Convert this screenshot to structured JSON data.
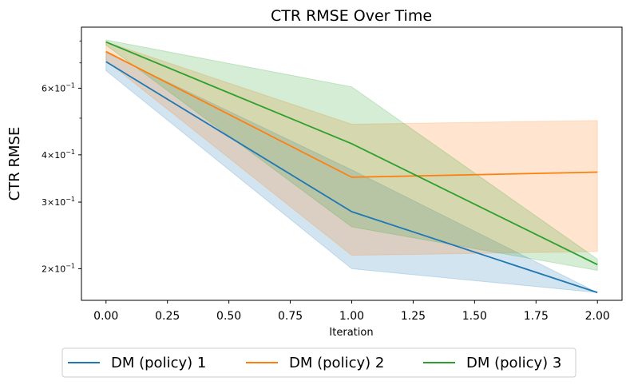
{
  "chart_data": {
    "type": "line",
    "title": "CTR RMSE Over Time",
    "xlabel": "Iteration",
    "ylabel": "CTR RMSE",
    "x": [
      0,
      1,
      2
    ],
    "xlim": [
      -0.1,
      2.1
    ],
    "ylim": [
      0.165,
      0.87
    ],
    "yscale": "log",
    "xticks": [
      0.0,
      0.25,
      0.5,
      0.75,
      1.0,
      1.25,
      1.5,
      1.75,
      2.0
    ],
    "xtick_labels": [
      "0.00",
      "0.25",
      "0.50",
      "0.75",
      "1.00",
      "1.25",
      "1.50",
      "1.75",
      "2.00"
    ],
    "yticks_major": [
      {
        "value": 0.2,
        "mantissa": "2",
        "base": "10",
        "exp": "−1"
      },
      {
        "value": 0.3,
        "mantissa": "3",
        "base": "10",
        "exp": "−1"
      },
      {
        "value": 0.4,
        "mantissa": "4",
        "base": "10",
        "exp": "−1"
      },
      {
        "value": 0.6,
        "mantissa": "6",
        "base": "10",
        "exp": "−1"
      }
    ],
    "yticks_minor": [
      0.5,
      0.7,
      0.8
    ],
    "legend_position": "below",
    "grid": false,
    "series": [
      {
        "name": "DM (policy) 1",
        "color": "#1f77b4",
        "values": [
          0.705,
          0.283,
          0.173
        ],
        "lower": [
          0.668,
          0.2,
          0.173
        ],
        "upper": [
          0.745,
          0.365,
          0.173
        ]
      },
      {
        "name": "DM (policy) 2",
        "color": "#ff7f0e",
        "values": [
          0.75,
          0.349,
          0.36
        ],
        "lower": [
          0.71,
          0.217,
          0.222
        ],
        "upper": [
          0.795,
          0.482,
          0.493
        ]
      },
      {
        "name": "DM (policy) 3",
        "color": "#2ca02c",
        "values": [
          0.795,
          0.428,
          0.205
        ],
        "lower": [
          0.78,
          0.258,
          0.198
        ],
        "upper": [
          0.805,
          0.605,
          0.212
        ]
      }
    ]
  }
}
